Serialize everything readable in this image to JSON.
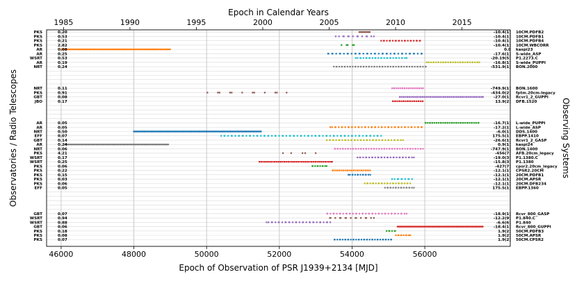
{
  "chart_data": {
    "type": "scatter",
    "title": "Epoch in Calendar Years",
    "xlabel": "Epoch of Observation of PSR J1939+2134 [MJD]",
    "ylabel": "Observatories / Radio Telescopes",
    "ylabel_right": "Observing Systems",
    "xlim": [
      45600,
      58350
    ],
    "x_ticks": [
      46000,
      48000,
      50000,
      52000,
      54000,
      56000
    ],
    "year_ticks": [
      {
        "label": "1985",
        "mjd": 46066
      },
      {
        "label": "1990",
        "mjd": 47892
      },
      {
        "label": "1995",
        "mjd": 49718
      },
      {
        "label": "2000",
        "mjd": 51544
      },
      {
        "label": "2005",
        "mjd": 53371
      },
      {
        "label": "2010",
        "mjd": 55197
      },
      {
        "label": "2015",
        "mjd": 57023
      }
    ],
    "grid": true,
    "rows": [
      {
        "tel": "PKS",
        "val": "0.20",
        "offset": "-10.4(1)",
        "system": "10CM.PDFB2",
        "color": "#8c564b",
        "start": 54200,
        "end": 54500,
        "n": 12
      },
      {
        "tel": "PKS",
        "val": "0.53",
        "offset": "-10.4(1)",
        "system": "10CM.PDFB1",
        "color": "#9467bd",
        "start": 53550,
        "end": 54600,
        "n": 14
      },
      {
        "tel": "PKS",
        "val": "0.21",
        "offset": "-10.4(1)",
        "system": "10CM.PDFB4",
        "color": "#d62728",
        "start": 54800,
        "end": 55900,
        "n": 22
      },
      {
        "tel": "PKS",
        "val": "2.82",
        "offset": "-10.4(1)",
        "system": "10CM.WBCORR",
        "color": "#2ca02c",
        "start": 53700,
        "end": 54100,
        "n": 5
      },
      {
        "tel": "AR",
        "val": "0.08",
        "offset": "0.0",
        "system": "kaspi23",
        "color": "#ff7f0e",
        "start": 46000,
        "end": 49000,
        "n": 110
      },
      {
        "tel": "AR",
        "val": "0.25",
        "offset": "-17.6(1)",
        "system": "S-wide_ASP",
        "color": "#1f77b4",
        "start": 53300,
        "end": 55950,
        "n": 40
      },
      {
        "tel": "WSRT",
        "val": "0.53",
        "offset": "-20.19(5)",
        "system": "P1.2273.C",
        "color": "#17becf",
        "start": 54100,
        "end": 55500,
        "n": 28
      },
      {
        "tel": "AR",
        "val": "0.19",
        "offset": "-16.8(1)",
        "system": "S-wide_PUPPI",
        "color": "#bcbd22",
        "start": 56050,
        "end": 57500,
        "n": 35
      },
      {
        "tel": "NRT",
        "val": "0.24",
        "offset": "-531.9(1)",
        "system": "BON.2000",
        "color": "#7f7f7f",
        "start": 53500,
        "end": 56050,
        "n": 55
      },
      {
        "blank": true
      },
      {
        "blank": true
      },
      {
        "blank": true
      },
      {
        "blank": true
      },
      {
        "tel": "NRT",
        "val": "0.11",
        "offset": "-749.9(1)",
        "system": "BON.1600",
        "color": "#e377c2",
        "start": 55100,
        "end": 55950,
        "n": 24
      },
      {
        "tel": "PKS",
        "val": "0.91",
        "offset": "-434.0(2)",
        "system": "fptm.20cm-legacy",
        "color": "#8c564b",
        "start": 50000,
        "end": 52200,
        "n": 12
      },
      {
        "tel": "GBT",
        "val": "0.08",
        "offset": "-27.0(1)",
        "system": "Rcvr1_2_GUPPI",
        "color": "#9467bd",
        "start": 55300,
        "end": 57600,
        "n": 70
      },
      {
        "tel": "JBO",
        "val": "0.17",
        "offset": "13.9(2)",
        "system": "DFB.1520",
        "color": "#d62728",
        "start": 55100,
        "end": 55950,
        "n": 24
      },
      {
        "blank": true
      },
      {
        "blank": true
      },
      {
        "blank": true
      },
      {
        "blank": true
      },
      {
        "tel": "AR",
        "val": "0.05",
        "offset": "-16.7(1)",
        "system": "L-wide_PUPPI",
        "color": "#2ca02c",
        "start": 56000,
        "end": 57500,
        "n": 40
      },
      {
        "tel": "AR",
        "val": "0.05",
        "offset": "-17.2(1)",
        "system": "L-wide_ASP",
        "color": "#ff7f0e",
        "start": 53400,
        "end": 55950,
        "n": 45
      },
      {
        "tel": "NRT",
        "val": "0.50",
        "offset": "-6.0(1)",
        "system": "DDS.1400",
        "color": "#1f77b4",
        "start": 48000,
        "end": 51500,
        "n": 180
      },
      {
        "tel": "EFF",
        "val": "0.07",
        "offset": "175.5(1)",
        "system": "EBPP.1410",
        "color": "#17becf",
        "start": 50400,
        "end": 54800,
        "n": 70
      },
      {
        "tel": "GBT",
        "val": "0.14",
        "offset": "-26.6(1)",
        "system": "Rcvr1_2_GASP",
        "color": "#bcbd22",
        "start": 53300,
        "end": 55400,
        "n": 40
      },
      {
        "tel": "AR",
        "val": "0.24",
        "offset": "0.9(1)",
        "system": "kaspi24",
        "color": "#7f7f7f",
        "start": 46100,
        "end": 48950,
        "n": 110
      },
      {
        "tel": "NRT",
        "val": "0.06",
        "offset": "-747.9(1)",
        "system": "BON.1400",
        "color": "#e377c2",
        "start": 53500,
        "end": 55950,
        "n": 55
      },
      {
        "tel": "PKS",
        "val": "4.21",
        "offset": "-456(7)",
        "system": "AFB.20cm_legacy",
        "color": "#8c564b",
        "start": 52100,
        "end": 53000,
        "n": 5
      },
      {
        "tel": "WSRT",
        "val": "0.17",
        "offset": "-19.0(3)",
        "system": "P1.1380.C",
        "color": "#9467bd",
        "start": 54150,
        "end": 55700,
        "n": 30
      },
      {
        "tel": "WSRT",
        "val": "0.25",
        "offset": "-15.8(3)",
        "system": "P1.1380",
        "color": "#d62728",
        "start": 51450,
        "end": 53450,
        "n": 60
      },
      {
        "tel": "PKS",
        "val": "0.06",
        "offset": "-427(7)",
        "system": "cpsr2.20cm_legacy",
        "color": "#2ca02c",
        "start": 52900,
        "end": 53300,
        "n": 10
      },
      {
        "tel": "PKS",
        "val": "0.22",
        "offset": "-12.1(1)",
        "system": "CPSR2.20CM",
        "color": "#ff7f0e",
        "start": 53450,
        "end": 54500,
        "n": 30
      },
      {
        "tel": "PKS",
        "val": "0.15",
        "offset": "-12.1(1)",
        "system": "20CM.PDFB1",
        "color": "#1f77b4",
        "start": 53900,
        "end": 54500,
        "n": 14
      },
      {
        "tel": "PKS",
        "val": "0.03",
        "offset": "-12.1(1)",
        "system": "20CM.APSR",
        "color": "#17becf",
        "start": 55100,
        "end": 55650,
        "n": 10
      },
      {
        "tel": "PKS",
        "val": "0.06",
        "offset": "-12.1(1)",
        "system": "20CM.DFB234",
        "color": "#bcbd22",
        "start": 54350,
        "end": 55600,
        "n": 26
      },
      {
        "tel": "EFF",
        "val": "0.05",
        "offset": "175.5(1)",
        "system": "EBPP.1360",
        "color": "#7f7f7f",
        "start": 54900,
        "end": 55700,
        "n": 18
      },
      {
        "blank": true
      },
      {
        "blank": true
      },
      {
        "blank": true
      },
      {
        "blank": true
      },
      {
        "blank": true
      },
      {
        "tel": "GBT",
        "val": "0.07",
        "offset": "-18.9(1)",
        "system": "Rcvr_800_GASP",
        "color": "#e377c2",
        "start": 53300,
        "end": 55500,
        "n": 40
      },
      {
        "tel": "WSRT",
        "val": "0.94",
        "offset": "-12.2(9)",
        "system": "P1.840.C",
        "color": "#8c564b",
        "start": 53350,
        "end": 54600,
        "n": 15
      },
      {
        "tel": "WSRT",
        "val": "0.88",
        "offset": "-6.6(6)",
        "system": "P1.840",
        "color": "#9467bd",
        "start": 51650,
        "end": 53400,
        "n": 30
      },
      {
        "tel": "GBT",
        "val": "0.06",
        "offset": "-18.4(1)",
        "system": "Rcvr_800_GUPPI",
        "color": "#d62728",
        "start": 55250,
        "end": 57600,
        "n": 100
      },
      {
        "tel": "PKS",
        "val": "0.18",
        "offset": "1.9(2)",
        "system": "50CM.PDFB3",
        "color": "#2ca02c",
        "start": 54950,
        "end": 55200,
        "n": 6
      },
      {
        "tel": "PKS",
        "val": "0.08",
        "offset": "1.9(2)",
        "system": "50CM.APSR",
        "color": "#ff7f0e",
        "start": 55200,
        "end": 55600,
        "n": 10
      },
      {
        "tel": "PKS",
        "val": "0.07",
        "offset": "1.9(2)",
        "system": "50CM.CPSR2",
        "color": "#1f77b4",
        "start": 53500,
        "end": 55100,
        "n": 35
      }
    ]
  }
}
